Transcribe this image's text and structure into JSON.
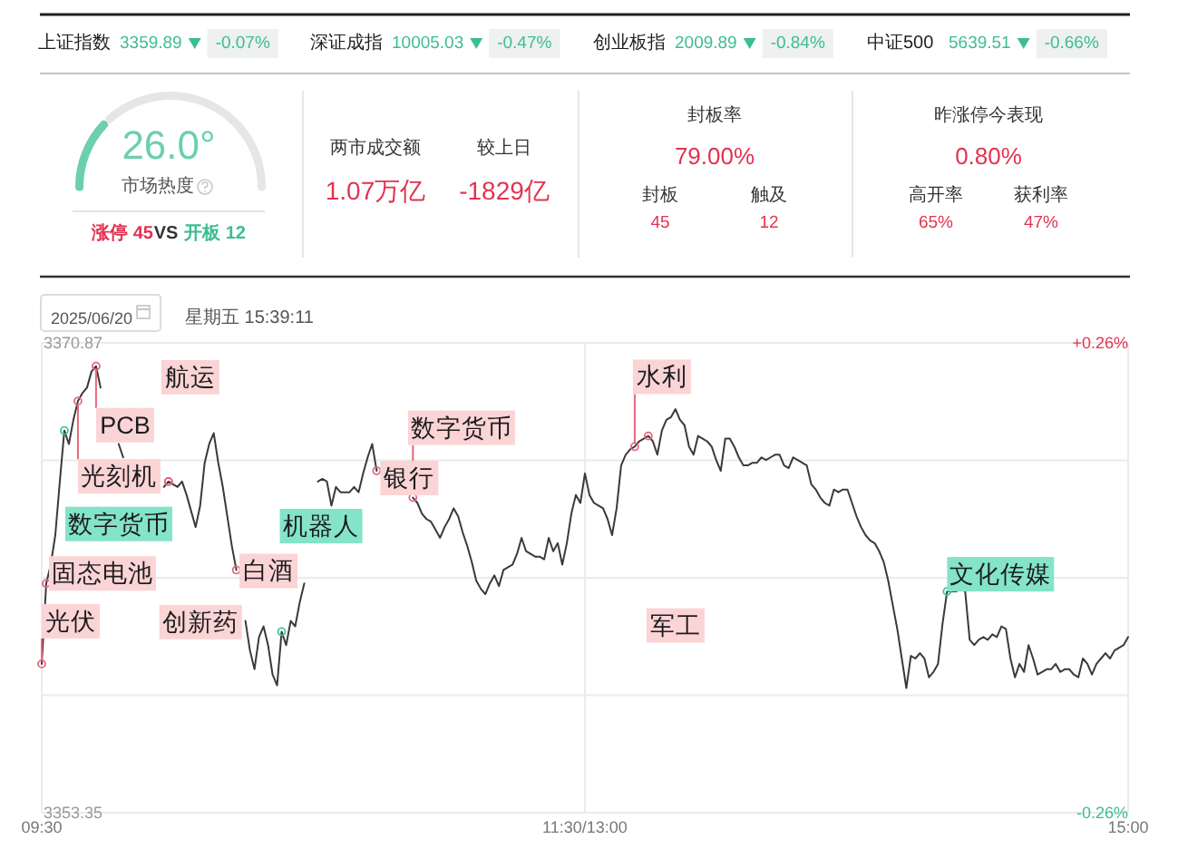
{
  "chart_data": [
    {
      "type": "other",
      "annotations": [
        "上证指数",
        "3359.89",
        "-0.07%",
        "深证成指",
        "10005.03",
        "-0.47%",
        "创业板指",
        "2009.89",
        "-0.84%",
        "中证500",
        "5639.51",
        "-0.66%"
      ]
    },
    {
      "type": "donut",
      "categories": [
        null,
        null
      ],
      "values": [
        26,
        74
      ],
      "colors": [
        "#6ccfad",
        "#e6e6e6"
      ],
      "annotations": [
        "26.0°",
        "市场热度",
        "涨停 45",
        "VS",
        "开板 12"
      ]
    },
    {
      "type": "other",
      "annotations": [
        "两市成交额",
        "1.07万亿",
        "较上日",
        "-1829亿",
        "封板率",
        "79.00%",
        "封板",
        "45",
        "触及",
        "12",
        "昨涨停今表现",
        "0.80%",
        "高开率",
        "65%",
        "获利率",
        "47%"
      ]
    },
    {
      "type": "line",
      "color": "#3a3a3a",
      "categories": [
        "09:30",
        null,
        null,
        null,
        null,
        null,
        null,
        null,
        null,
        null,
        null,
        null,
        null,
        null,
        null,
        null,
        null,
        null,
        null,
        null,
        null,
        null,
        null,
        null,
        null,
        null,
        null,
        null,
        null,
        null,
        null,
        null,
        null,
        null,
        null,
        null,
        null,
        null,
        null,
        null,
        null,
        null,
        null,
        null,
        null,
        null,
        null,
        null,
        null,
        null,
        null,
        null,
        null,
        null,
        null,
        null,
        null,
        null,
        null,
        null,
        null,
        null,
        null,
        null,
        null,
        null,
        null,
        null,
        null,
        null,
        null,
        null,
        null,
        null,
        null,
        null,
        null,
        null,
        null,
        null,
        null,
        null,
        null,
        null,
        null,
        null,
        null,
        null,
        null,
        null,
        null,
        null,
        null,
        null,
        null,
        null,
        null,
        null,
        null,
        null,
        null,
        null,
        null,
        null,
        null,
        null,
        null,
        null,
        null,
        null,
        null,
        null,
        null,
        null,
        null,
        null,
        null,
        null,
        null,
        null,
        "11:30/13:00",
        null,
        null,
        null,
        null,
        null,
        null,
        null,
        null,
        null,
        null,
        null,
        null,
        null,
        null,
        null,
        null,
        null,
        null,
        null,
        null,
        null,
        null,
        null,
        null,
        null,
        null,
        null,
        null,
        null,
        null,
        null,
        null,
        null,
        null,
        null,
        null,
        null,
        null,
        null,
        null,
        null,
        null,
        null,
        null,
        null,
        null,
        null,
        null,
        null,
        null,
        null,
        null,
        null,
        null,
        null,
        null,
        null,
        null,
        null,
        null,
        null,
        null,
        null,
        null,
        null,
        null,
        null,
        null,
        null,
        null,
        null,
        null,
        null,
        null,
        null,
        null,
        null,
        null,
        null,
        null,
        null,
        null,
        null,
        null,
        null,
        null,
        null,
        null,
        null,
        null,
        null,
        null,
        null,
        null,
        null,
        null,
        null,
        null,
        null,
        null,
        null,
        null,
        null,
        null,
        null,
        null,
        null,
        null,
        null,
        null,
        null,
        null,
        null,
        null,
        null,
        null,
        null,
        null,
        null,
        "15:00"
      ],
      "values": [
        3358.9,
        3361.9,
        3362.6,
        3363.7,
        3365.7,
        3367.6,
        3367.1,
        3368.0,
        3368.7,
        3369.0,
        3369.2,
        3369.8,
        3370.0,
        3369.2,
        null,
        null,
        null,
        3367.1,
        3366.6,
        null,
        null,
        null,
        null,
        null,
        null,
        null,
        null,
        3365.5,
        3365.7,
        3365.6,
        3365.5,
        3365.7,
        3365.2,
        3364.6,
        3364.0,
        3364.8,
        3366.4,
        3367.1,
        3367.5,
        3366.4,
        3365.5,
        3364.4,
        3363.3,
        3362.4,
        null,
        3360.5,
        3359.4,
        3358.7,
        3359.9,
        3360.3,
        3359.6,
        3358.5,
        3358.1,
        3360.1,
        3359.6,
        3360.5,
        3360.3,
        3361.2,
        3361.9,
        null,
        null,
        3365.7,
        3365.8,
        3365.7,
        3364.8,
        3365.5,
        3365.3,
        3365.3,
        3365.3,
        3365.5,
        3365.3,
        3366.0,
        3366.6,
        3367.1,
        3366.1,
        null,
        null,
        null,
        null,
        null,
        null,
        null,
        3365.1,
        3364.9,
        3364.5,
        3364.3,
        3364.2,
        3363.9,
        3363.6,
        3364.0,
        3364.3,
        3364.7,
        3364.4,
        3363.8,
        3363.3,
        3362.7,
        3362.0,
        3361.7,
        3361.5,
        3361.9,
        3362.2,
        3361.8,
        3362.4,
        3362.5,
        3362.6,
        3363.0,
        3363.6,
        3363.1,
        3363.0,
        3362.9,
        3362.9,
        3362.8,
        3363.6,
        3363.1,
        3363.4,
        3362.6,
        3363.4,
        3364.5,
        3365.2,
        3364.9,
        3366.0,
        3365.2,
        3364.9,
        3364.8,
        3364.7,
        3364.3,
        3363.7,
        3364.7,
        3366.3,
        3366.7,
        3366.9,
        3367.0,
        3367.2,
        3367.3,
        3367.4,
        3367.2,
        3366.7,
        3367.6,
        3368.0,
        3368.1,
        3368.4,
        3368.0,
        3367.8,
        3367.0,
        3366.7,
        3367.4,
        3367.3,
        3367.2,
        3367.0,
        3366.5,
        3366.1,
        3367.3,
        3367.3,
        3367.0,
        3366.6,
        3366.3,
        3366.3,
        3366.4,
        3366.4,
        3366.6,
        3366.5,
        3366.6,
        3366.7,
        3366.7,
        3366.3,
        3366.2,
        3366.6,
        3366.5,
        3366.4,
        3366.3,
        3365.6,
        3365.4,
        3365.1,
        3364.9,
        3364.8,
        3365.4,
        3365.3,
        3365.4,
        3365.4,
        3364.9,
        3364.4,
        3364.0,
        3363.7,
        3363.5,
        3363.4,
        3363.1,
        3362.7,
        3362.0,
        3361.1,
        3360.2,
        3359.1,
        3358.0,
        3359.2,
        3359.1,
        3359.3,
        3359.1,
        3358.4,
        3358.6,
        3358.9,
        3360.4,
        3361.6,
        3361.6,
        3361.6,
        3361.7,
        3361.6,
        3359.8,
        3359.6,
        3359.8,
        3359.9,
        3359.8,
        3360.0,
        3359.9,
        3360.3,
        3360.2,
        3359.1,
        3358.4,
        3358.9,
        3358.6,
        3359.6,
        3359.1,
        3358.5,
        3358.6,
        3358.7,
        3358.7,
        3358.9,
        3358.6,
        3358.7,
        3358.7,
        3358.5,
        3358.4,
        3359.1,
        3358.9,
        3358.5,
        3358.9,
        3359.1,
        3359.3,
        3359.1,
        3359.4,
        3359.5,
        3359.6,
        3359.9
      ],
      "ylim": [
        3353.35,
        3370.87
      ],
      "yticks": [
        3353.35,
        {
          "value": 3357.73,
          "label": null
        },
        {
          "value": 3362.11,
          "label": null
        },
        {
          "value": 3366.49,
          "label": null
        },
        3370.87
      ],
      "y2lim": [
        -0.26,
        0.26
      ],
      "y2ticks": [
        {
          "value": -0.26,
          "label": "-0.26%"
        },
        {
          "value": 0.26,
          "label": "+0.26%"
        }
      ],
      "grid": true,
      "annotations": [
        "2025/06/20",
        "星期五 15:39:11",
        {
          "text": "光伏",
          "x": "09:30",
          "y": 3358.9
        },
        "固态电池",
        "数字货币",
        "光刻机",
        "PCB",
        "航运",
        "创新药",
        "白酒",
        "机器人",
        "银行",
        "数字货币",
        "水利",
        "军工",
        "文化传媒"
      ]
    }
  ]
}
